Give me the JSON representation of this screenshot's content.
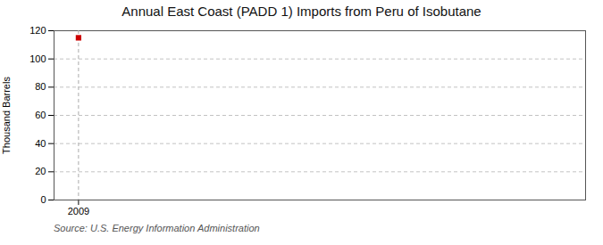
{
  "chart_data": {
    "type": "scatter",
    "title": "Annual East Coast (PADD 1) Imports from Peru of Isobutane",
    "ylabel": "Thousand Barrels",
    "caption": "Source: U.S. Energy Information Administration",
    "x": [
      2009
    ],
    "values": [
      115
    ],
    "color": "#CC0000",
    "marker": "square",
    "xlim": [
      2008.3,
      2023.5
    ],
    "xticks": [
      2009
    ],
    "ylim": [
      0,
      120
    ],
    "yticks": [
      0,
      20,
      40,
      60,
      80,
      100,
      120
    ],
    "grid": true,
    "vline": {
      "x": 2009,
      "color": "#AAAAAA",
      "line_style": "dashed"
    }
  }
}
